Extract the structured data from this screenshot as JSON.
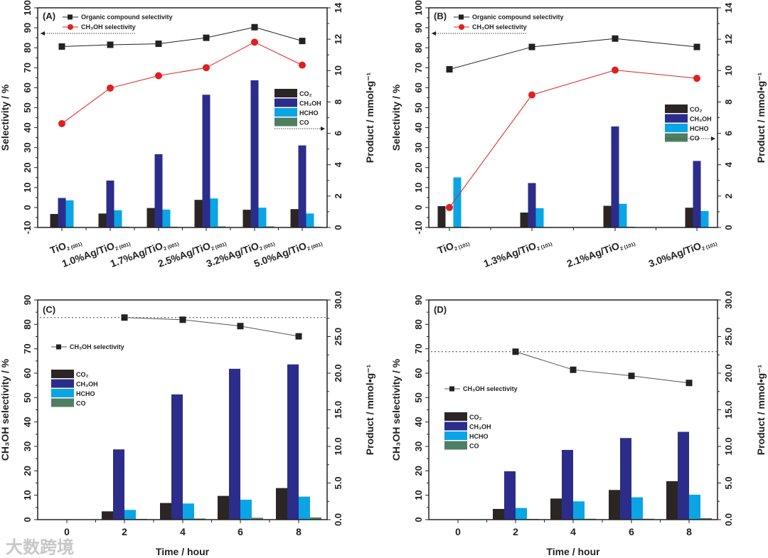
{
  "watermark": "大数跨境",
  "colors": {
    "CO2": "#2b2624",
    "CH3OH": "#2c2d8a",
    "HCHO": "#0aa5e5",
    "CO": "#4f7f62",
    "organic_line": "#222222",
    "ch3oh_line": "#e02020",
    "ch3oh_line_gray": "#555555"
  },
  "chart_data": [
    {
      "panel": "(A)",
      "type": "bar+line",
      "ylabel_left": "Selectivity / %",
      "ylabel_right": "Product / mmol•g⁻¹",
      "xlabel": "",
      "ylim_left": [
        -10,
        100
      ],
      "yticks_left": [
        "-10",
        "0",
        "10",
        "20",
        "30",
        "40",
        "50",
        "60",
        "70",
        "80",
        "90",
        "100"
      ],
      "ylim_right": [
        0,
        14
      ],
      "yticks_right": [
        "0",
        "2",
        "4",
        "6",
        "8",
        "10",
        "12",
        "14"
      ],
      "categories": [
        {
          "main": "TiO",
          "sub": "2 (001)"
        },
        {
          "main": "1.0%Ag/TiO",
          "sub": "2 (001)"
        },
        {
          "main": "1.7%Ag/TiO",
          "sub": "2 (001)"
        },
        {
          "main": "2.5%Ag/TiO",
          "sub": "2 (001)"
        },
        {
          "main": "3.2%Ag/TiO",
          "sub": "2 (001)"
        },
        {
          "main": "5.0%Ag/TiO",
          "sub": "2 (001)"
        }
      ],
      "bar_series": [
        {
          "name": "CO₂",
          "key": "CO2",
          "values": [
            0.86,
            0.89,
            1.24,
            1.76,
            1.13,
            1.17
          ]
        },
        {
          "name": "CH₃OH",
          "key": "CH3OH",
          "values": [
            1.88,
            2.99,
            4.67,
            8.46,
            9.38,
            5.23
          ]
        },
        {
          "name": "HCHO",
          "key": "HCHO",
          "values": [
            1.73,
            1.1,
            1.14,
            1.85,
            1.26,
            0.89
          ]
        },
        {
          "name": "CO",
          "key": "CO",
          "values": [
            0.02,
            0.05,
            0.05,
            0.07,
            0.07,
            0.05
          ]
        }
      ],
      "line_series": [
        {
          "name": "Organic compound selectivity",
          "marker": "square",
          "color_key": "organic_line",
          "values": [
            80.6,
            81.5,
            82.0,
            85.0,
            90.3,
            83.4
          ]
        },
        {
          "name": "CH₃OH selectivity",
          "marker": "circle",
          "color_key": "ch3oh_line",
          "values": [
            42.0,
            59.8,
            66.0,
            70.0,
            82.8,
            71.3
          ]
        }
      ]
    },
    {
      "panel": "(B)",
      "type": "bar+line",
      "ylabel_left": "Selectivity / %",
      "ylabel_right": "Product / mmol•g⁻¹",
      "xlabel": "",
      "ylim_left": [
        -10,
        100
      ],
      "yticks_left": [
        "-10",
        "0",
        "10",
        "20",
        "30",
        "40",
        "50",
        "60",
        "70",
        "80",
        "90",
        "100"
      ],
      "ylim_right": [
        0,
        14
      ],
      "yticks_right": [
        "0",
        "2",
        "4",
        "6",
        "8",
        "10",
        "12",
        "14"
      ],
      "categories": [
        {
          "main": "TiO",
          "sub": "2 (101)"
        },
        {
          "main": "1.3%Ag/TiO",
          "sub": "2 (101)"
        },
        {
          "main": "2.1%Ag/TiO",
          "sub": "2 (101)"
        },
        {
          "main": "3.0%Ag/TiO",
          "sub": "2 (101)"
        }
      ],
      "bar_series": [
        {
          "name": "CO₂",
          "key": "CO2",
          "values": [
            1.36,
            0.95,
            1.38,
            1.26
          ]
        },
        {
          "name": "CH₃OH",
          "key": "CH3OH",
          "values": [
            0,
            2.83,
            6.44,
            4.24
          ]
        },
        {
          "name": "HCHO",
          "key": "HCHO",
          "values": [
            3.19,
            1.23,
            1.51,
            1.05
          ]
        },
        {
          "name": "CO",
          "key": "CO",
          "values": [
            0.05,
            0.03,
            0.05,
            0.03
          ]
        }
      ],
      "line_series": [
        {
          "name": "Organic compound selectivity",
          "marker": "square",
          "color_key": "organic_line",
          "values": [
            69.2,
            80.4,
            84.6,
            80.4
          ]
        },
        {
          "name": "CH₃OH selectivity",
          "marker": "circle",
          "color_key": "ch3oh_line",
          "values": [
            0.0,
            56.4,
            68.8,
            64.7
          ]
        }
      ]
    },
    {
      "panel": "(C)",
      "type": "bar+line",
      "ylabel_left": "CH₃OH selectivity / %",
      "ylabel_right": "Product / mmol•g⁻¹",
      "xlabel": "Time / hour",
      "ylim_left": [
        0,
        90
      ],
      "yticks_left": [
        "0",
        "10",
        "20",
        "30",
        "40",
        "50",
        "60",
        "70",
        "80",
        "90"
      ],
      "ylim_right": [
        0,
        30
      ],
      "yticks_right": [
        "0.0",
        "5.0",
        "10.0",
        "15.0",
        "20.0",
        "25.0",
        "30.0"
      ],
      "categories": [
        {
          "main": "0"
        },
        {
          "main": "2"
        },
        {
          "main": "4"
        },
        {
          "main": "6"
        },
        {
          "main": "8"
        }
      ],
      "reference_line": 82.8,
      "bar_series": [
        {
          "name": "CO₂",
          "key": "CO2",
          "values": [
            0,
            1.13,
            2.27,
            3.24,
            4.31
          ]
        },
        {
          "name": "CH₃OH",
          "key": "CH3OH",
          "values": [
            0,
            9.59,
            17.1,
            20.6,
            21.2
          ]
        },
        {
          "name": "HCHO",
          "key": "HCHO",
          "values": [
            0,
            1.33,
            2.2,
            2.72,
            3.14
          ]
        },
        {
          "name": "CO",
          "key": "CO",
          "values": [
            0,
            0.1,
            0.15,
            0.25,
            0.3
          ]
        }
      ],
      "line_series": [
        {
          "name": "CH₃OH selectivity",
          "marker": "square",
          "color_key": "ch3oh_line_gray",
          "x_from": 1,
          "values": [
            null,
            82.8,
            81.9,
            79.3,
            75.1
          ]
        }
      ]
    },
    {
      "panel": "(D)",
      "type": "bar+line",
      "ylabel_left": "CH₃OH selectivity / %",
      "ylabel_right": "Product / mmol•g⁻¹",
      "xlabel": "Time / hour",
      "ylim_left": [
        0,
        90
      ],
      "yticks_left": [
        "0",
        "10",
        "20",
        "30",
        "40",
        "50",
        "60",
        "70",
        "80",
        "90"
      ],
      "ylim_right": [
        0,
        30
      ],
      "yticks_right": [
        "0.0",
        "5.0",
        "10.0",
        "15.0",
        "20.0",
        "25.0",
        "30.0"
      ],
      "categories": [
        {
          "main": "0"
        },
        {
          "main": "2"
        },
        {
          "main": "4"
        },
        {
          "main": "6"
        },
        {
          "main": "8"
        }
      ],
      "reference_line": 68.8,
      "bar_series": [
        {
          "name": "CO₂",
          "key": "CO2",
          "values": [
            0,
            1.46,
            2.88,
            4.05,
            5.25
          ]
        },
        {
          "name": "CH₃OH",
          "key": "CH3OH",
          "values": [
            0,
            6.6,
            9.52,
            11.14,
            11.99
          ]
        },
        {
          "name": "HCHO",
          "key": "HCHO",
          "values": [
            0,
            1.59,
            2.49,
            3.05,
            3.4
          ]
        },
        {
          "name": "CO",
          "key": "CO",
          "values": [
            0,
            0.1,
            0.12,
            0.12,
            0.2
          ]
        }
      ],
      "line_series": [
        {
          "name": "CH₃OH selectivity",
          "marker": "square",
          "color_key": "ch3oh_line_gray",
          "values": [
            null,
            68.8,
            61.4,
            58.9,
            56.0
          ]
        }
      ]
    }
  ]
}
